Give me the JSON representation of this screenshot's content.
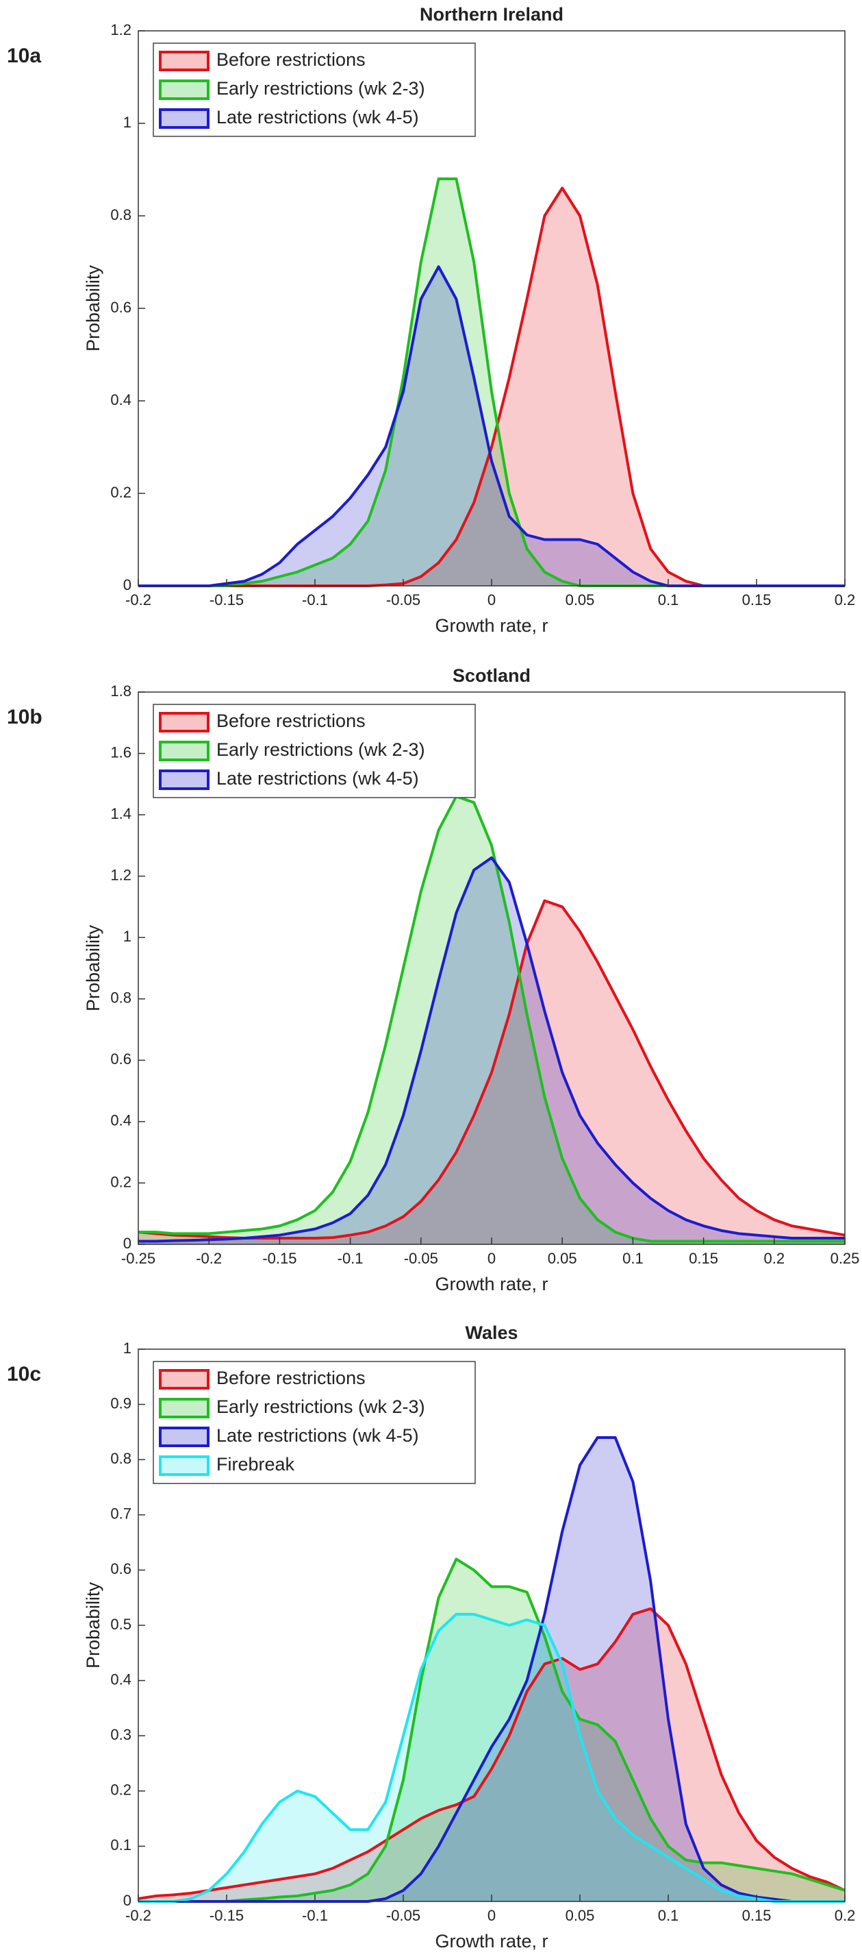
{
  "chart_data": [
    {
      "type": "area",
      "panel_label": "10a",
      "title": "Northern Ireland",
      "xlabel": "Growth rate, r",
      "ylabel": "Probability",
      "xlim": [
        -0.2,
        0.2
      ],
      "ylim": [
        0,
        1.2
      ],
      "xticks": [
        -0.2,
        -0.15,
        -0.1,
        -0.05,
        0,
        0.05,
        0.1,
        0.15,
        0.2
      ],
      "yticks": [
        0,
        0.2,
        0.4,
        0.6,
        0.8,
        1,
        1.2
      ],
      "x": [
        -0.2,
        -0.19,
        -0.18,
        -0.17,
        -0.16,
        -0.15,
        -0.14,
        -0.13,
        -0.12,
        -0.11,
        -0.1,
        -0.09,
        -0.08,
        -0.07,
        -0.06,
        -0.05,
        -0.04,
        -0.03,
        -0.02,
        -0.01,
        0,
        0.01,
        0.02,
        0.03,
        0.04,
        0.05,
        0.06,
        0.07,
        0.08,
        0.09,
        0.1,
        0.11,
        0.12,
        0.13,
        0.14,
        0.15,
        0.16,
        0.17,
        0.18,
        0.19,
        0.2
      ],
      "series": [
        {
          "name": "Before restrictions",
          "color": "#e3121b",
          "values": [
            0,
            0,
            0,
            0,
            0,
            0,
            0,
            0,
            0,
            0,
            0,
            0,
            0,
            0,
            0.002,
            0.005,
            0.02,
            0.05,
            0.1,
            0.18,
            0.3,
            0.45,
            0.62,
            0.8,
            0.86,
            0.8,
            0.65,
            0.42,
            0.2,
            0.08,
            0.03,
            0.01,
            0,
            0,
            0,
            0,
            0,
            0,
            0,
            0,
            0
          ]
        },
        {
          "name": "Early restrictions (wk 2-3)",
          "color": "#1fbf1f",
          "values": [
            0,
            0,
            0,
            0,
            0,
            0,
            0.005,
            0.01,
            0.02,
            0.03,
            0.045,
            0.06,
            0.09,
            0.14,
            0.25,
            0.45,
            0.7,
            0.88,
            0.88,
            0.7,
            0.42,
            0.2,
            0.08,
            0.03,
            0.01,
            0,
            0,
            0,
            0,
            0,
            0,
            0,
            0,
            0,
            0,
            0,
            0,
            0,
            0,
            0,
            0
          ]
        },
        {
          "name": "Late restrictions (wk 4-5)",
          "color": "#1c1ccf",
          "values": [
            0,
            0,
            0,
            0,
            0,
            0.005,
            0.01,
            0.025,
            0.05,
            0.09,
            0.12,
            0.15,
            0.19,
            0.24,
            0.3,
            0.42,
            0.62,
            0.69,
            0.62,
            0.45,
            0.27,
            0.15,
            0.11,
            0.1,
            0.1,
            0.1,
            0.09,
            0.06,
            0.03,
            0.01,
            0,
            0,
            0,
            0,
            0,
            0,
            0,
            0,
            0,
            0,
            0
          ]
        }
      ]
    },
    {
      "type": "area",
      "panel_label": "10b",
      "title": "Scotland",
      "xlabel": "Growth rate, r",
      "ylabel": "Probability",
      "xlim": [
        -0.25,
        0.25
      ],
      "ylim": [
        0,
        1.8
      ],
      "xticks": [
        -0.25,
        -0.2,
        -0.15,
        -0.1,
        -0.05,
        0,
        0.05,
        0.1,
        0.15,
        0.2,
        0.25
      ],
      "yticks": [
        0,
        0.2,
        0.4,
        0.6,
        0.8,
        1,
        1.2,
        1.4,
        1.6,
        1.8
      ],
      "x": [
        -0.25,
        -0.2375,
        -0.225,
        -0.2125,
        -0.2,
        -0.1875,
        -0.175,
        -0.1625,
        -0.15,
        -0.1375,
        -0.125,
        -0.1125,
        -0.1,
        -0.0875,
        -0.075,
        -0.0625,
        -0.05,
        -0.0375,
        -0.025,
        -0.0125,
        0,
        0.0125,
        0.025,
        0.0375,
        0.05,
        0.0625,
        0.075,
        0.0875,
        0.1,
        0.1125,
        0.125,
        0.1375,
        0.15,
        0.1625,
        0.175,
        0.1875,
        0.2,
        0.2125,
        0.225,
        0.2375,
        0.25
      ],
      "series": [
        {
          "name": "Before restrictions",
          "color": "#e3121b",
          "values": [
            0.04,
            0.035,
            0.03,
            0.028,
            0.025,
            0.022,
            0.02,
            0.02,
            0.02,
            0.02,
            0.02,
            0.022,
            0.03,
            0.04,
            0.06,
            0.09,
            0.14,
            0.21,
            0.3,
            0.42,
            0.56,
            0.75,
            0.98,
            1.12,
            1.1,
            1.02,
            0.92,
            0.81,
            0.7,
            0.58,
            0.47,
            0.37,
            0.28,
            0.21,
            0.15,
            0.11,
            0.08,
            0.06,
            0.05,
            0.04,
            0.03
          ]
        },
        {
          "name": "Early restrictions (wk 2-3)",
          "color": "#1fbf1f",
          "values": [
            0.04,
            0.04,
            0.035,
            0.035,
            0.035,
            0.04,
            0.045,
            0.05,
            0.06,
            0.08,
            0.11,
            0.17,
            0.27,
            0.43,
            0.65,
            0.9,
            1.15,
            1.35,
            1.46,
            1.44,
            1.3,
            1.05,
            0.75,
            0.48,
            0.28,
            0.15,
            0.08,
            0.04,
            0.02,
            0.01,
            0.01,
            0.01,
            0.01,
            0.01,
            0.01,
            0.01,
            0.01,
            0.01,
            0.01,
            0.01,
            0.01
          ]
        },
        {
          "name": "Late restrictions (wk 4-5)",
          "color": "#1c1ccf",
          "values": [
            0.01,
            0.01,
            0.012,
            0.013,
            0.015,
            0.017,
            0.02,
            0.025,
            0.03,
            0.04,
            0.05,
            0.07,
            0.1,
            0.16,
            0.26,
            0.42,
            0.63,
            0.86,
            1.08,
            1.22,
            1.26,
            1.18,
            0.98,
            0.76,
            0.56,
            0.42,
            0.33,
            0.26,
            0.2,
            0.15,
            0.11,
            0.08,
            0.06,
            0.045,
            0.035,
            0.03,
            0.025,
            0.02,
            0.02,
            0.02,
            0.02
          ]
        }
      ]
    },
    {
      "type": "area",
      "panel_label": "10c",
      "title": "Wales",
      "xlabel": "Growth rate, r",
      "ylabel": "Probability",
      "xlim": [
        -0.2,
        0.2
      ],
      "ylim": [
        0,
        1
      ],
      "xticks": [
        -0.2,
        -0.15,
        -0.1,
        -0.05,
        0,
        0.05,
        0.1,
        0.15,
        0.2
      ],
      "yticks": [
        0,
        0.1,
        0.2,
        0.3,
        0.4,
        0.5,
        0.6,
        0.7,
        0.8,
        0.9,
        1
      ],
      "x": [
        -0.2,
        -0.19,
        -0.18,
        -0.17,
        -0.16,
        -0.15,
        -0.14,
        -0.13,
        -0.12,
        -0.11,
        -0.1,
        -0.09,
        -0.08,
        -0.07,
        -0.06,
        -0.05,
        -0.04,
        -0.03,
        -0.02,
        -0.01,
        0,
        0.01,
        0.02,
        0.03,
        0.04,
        0.05,
        0.06,
        0.07,
        0.08,
        0.09,
        0.1,
        0.11,
        0.12,
        0.13,
        0.14,
        0.15,
        0.16,
        0.17,
        0.18,
        0.19,
        0.2
      ],
      "series": [
        {
          "name": "Before restrictions",
          "color": "#e3121b",
          "values": [
            0.005,
            0.01,
            0.012,
            0.015,
            0.02,
            0.025,
            0.03,
            0.035,
            0.04,
            0.045,
            0.05,
            0.06,
            0.075,
            0.09,
            0.11,
            0.13,
            0.15,
            0.165,
            0.175,
            0.19,
            0.24,
            0.3,
            0.38,
            0.43,
            0.44,
            0.42,
            0.43,
            0.47,
            0.52,
            0.53,
            0.5,
            0.43,
            0.33,
            0.23,
            0.16,
            0.11,
            0.08,
            0.06,
            0.045,
            0.035,
            0.02
          ]
        },
        {
          "name": "Early restrictions (wk 2-3)",
          "color": "#1fbf1f",
          "values": [
            0,
            0,
            0,
            0,
            0,
            0,
            0.003,
            0.005,
            0.008,
            0.01,
            0.015,
            0.02,
            0.03,
            0.05,
            0.1,
            0.22,
            0.4,
            0.55,
            0.62,
            0.6,
            0.57,
            0.57,
            0.56,
            0.48,
            0.38,
            0.33,
            0.32,
            0.29,
            0.22,
            0.15,
            0.1,
            0.075,
            0.07,
            0.07,
            0.065,
            0.06,
            0.055,
            0.05,
            0.04,
            0.03,
            0.02
          ]
        },
        {
          "name": "Late restrictions (wk 4-5)",
          "color": "#1c1ccf",
          "values": [
            0,
            0,
            0,
            0,
            0,
            0,
            0,
            0,
            0,
            0,
            0,
            0,
            0,
            0,
            0.005,
            0.02,
            0.05,
            0.1,
            0.16,
            0.22,
            0.28,
            0.33,
            0.4,
            0.52,
            0.67,
            0.79,
            0.84,
            0.84,
            0.76,
            0.58,
            0.33,
            0.14,
            0.06,
            0.03,
            0.015,
            0.008,
            0.004,
            0,
            0,
            0,
            0
          ]
        },
        {
          "name": "Firebreak",
          "color": "#1ee6f0",
          "values": [
            0,
            0,
            0,
            0.005,
            0.02,
            0.05,
            0.09,
            0.14,
            0.18,
            0.2,
            0.19,
            0.16,
            0.13,
            0.13,
            0.18,
            0.3,
            0.42,
            0.49,
            0.52,
            0.52,
            0.51,
            0.5,
            0.51,
            0.5,
            0.43,
            0.3,
            0.2,
            0.15,
            0.12,
            0.1,
            0.08,
            0.06,
            0.04,
            0.02,
            0.01,
            0.005,
            0,
            0,
            0,
            0,
            0
          ]
        }
      ]
    }
  ]
}
